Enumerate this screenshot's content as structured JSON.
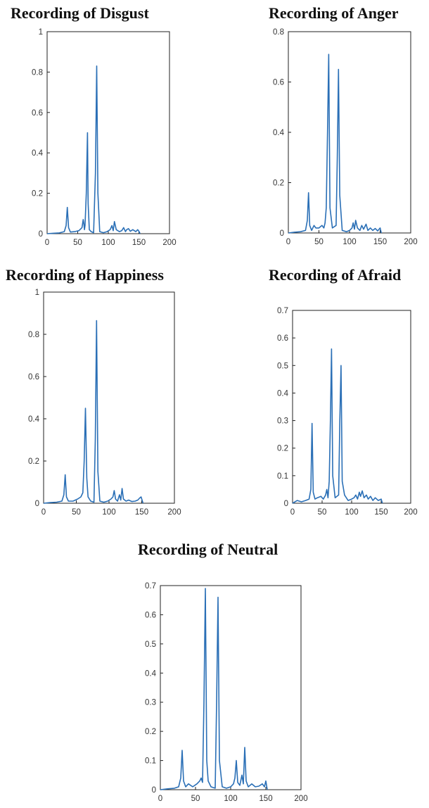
{
  "chart_data": [
    {
      "type": "line",
      "title": "Recording of Disgust",
      "xlim": [
        0,
        200
      ],
      "ylim": [
        0,
        1
      ],
      "xticks": [
        0,
        50,
        100,
        150,
        200
      ],
      "yticks": [
        0,
        0.2,
        0.4,
        0.6,
        0.8,
        1
      ],
      "ytick_labels": [
        "0",
        "0.2",
        "0.4",
        "0.6",
        "0.8",
        "1"
      ],
      "grid": false,
      "line_color": "#2a6fb6",
      "series": [
        {
          "x": [
            0,
            10,
            20,
            28,
            31,
            33,
            35,
            38,
            45,
            52,
            57,
            59,
            60,
            61,
            62,
            64,
            66,
            67,
            69,
            72,
            76,
            79,
            81,
            83,
            86,
            92,
            98,
            103,
            106,
            108,
            110,
            113,
            118,
            122,
            125,
            128,
            130,
            133,
            136,
            140,
            145,
            148,
            150,
            152
          ],
          "y": [
            0.0,
            0.002,
            0.004,
            0.01,
            0.04,
            0.13,
            0.03,
            0.008,
            0.01,
            0.015,
            0.03,
            0.07,
            0.05,
            0.02,
            0.04,
            0.2,
            0.5,
            0.15,
            0.02,
            0.01,
            0.005,
            0.3,
            0.83,
            0.2,
            0.01,
            0.005,
            0.01,
            0.02,
            0.04,
            0.015,
            0.06,
            0.02,
            0.01,
            0.015,
            0.03,
            0.01,
            0.02,
            0.025,
            0.012,
            0.02,
            0.01,
            0.02,
            0.012,
            0.0
          ]
        }
      ]
    },
    {
      "type": "line",
      "title": "Recording of Anger",
      "xlim": [
        0,
        200
      ],
      "ylim": [
        0,
        0.8
      ],
      "xticks": [
        0,
        50,
        100,
        150,
        200
      ],
      "yticks": [
        0,
        0.2,
        0.4,
        0.6,
        0.8
      ],
      "ytick_labels": [
        "0",
        "0.2",
        "0.4",
        "0.6",
        "0.8"
      ],
      "grid": false,
      "line_color": "#2a6fb6",
      "series": [
        {
          "x": [
            0,
            10,
            20,
            28,
            31,
            33,
            35,
            38,
            42,
            45,
            50,
            55,
            58,
            60,
            62,
            64,
            66,
            68,
            72,
            78,
            80,
            82,
            84,
            88,
            95,
            100,
            104,
            106,
            108,
            110,
            113,
            117,
            120,
            123,
            127,
            130,
            134,
            138,
            142,
            146,
            150,
            152
          ],
          "y": [
            0.0,
            0.003,
            0.005,
            0.01,
            0.05,
            0.16,
            0.03,
            0.01,
            0.03,
            0.02,
            0.02,
            0.03,
            0.02,
            0.04,
            0.1,
            0.4,
            0.71,
            0.1,
            0.02,
            0.03,
            0.3,
            0.65,
            0.15,
            0.01,
            0.005,
            0.01,
            0.02,
            0.04,
            0.015,
            0.05,
            0.02,
            0.01,
            0.03,
            0.015,
            0.035,
            0.01,
            0.02,
            0.01,
            0.018,
            0.008,
            0.02,
            0.0
          ]
        }
      ]
    },
    {
      "type": "line",
      "title": "Recording of Happiness",
      "xlim": [
        0,
        200
      ],
      "ylim": [
        0,
        1
      ],
      "xticks": [
        0,
        50,
        100,
        150,
        200
      ],
      "yticks": [
        0,
        0.2,
        0.4,
        0.6,
        0.8,
        1
      ],
      "ytick_labels": [
        "0",
        "0.2",
        "0.4",
        "0.6",
        "0.8",
        "1"
      ],
      "grid": false,
      "line_color": "#2a6fb6",
      "series": [
        {
          "x": [
            0,
            10,
            20,
            28,
            31,
            33,
            35,
            38,
            45,
            52,
            57,
            60,
            62,
            64,
            66,
            68,
            72,
            77,
            79,
            81,
            83,
            86,
            92,
            98,
            103,
            106,
            108,
            110,
            113,
            116,
            118,
            120,
            122,
            126,
            130,
            135,
            140,
            144,
            147,
            149,
            152
          ],
          "y": [
            0.0,
            0.003,
            0.005,
            0.01,
            0.04,
            0.135,
            0.03,
            0.01,
            0.01,
            0.02,
            0.03,
            0.05,
            0.2,
            0.45,
            0.12,
            0.03,
            0.01,
            0.005,
            0.3,
            0.865,
            0.15,
            0.01,
            0.005,
            0.01,
            0.02,
            0.03,
            0.06,
            0.02,
            0.01,
            0.04,
            0.015,
            0.07,
            0.02,
            0.01,
            0.015,
            0.008,
            0.01,
            0.015,
            0.025,
            0.03,
            0.0
          ]
        }
      ]
    },
    {
      "type": "line",
      "title": "Recording of Afraid",
      "xlim": [
        0,
        200
      ],
      "ylim": [
        0,
        0.7
      ],
      "xticks": [
        0,
        50,
        100,
        150,
        200
      ],
      "yticks": [
        0,
        0.1,
        0.2,
        0.3,
        0.4,
        0.5,
        0.6,
        0.7
      ],
      "ytick_labels": [
        "0",
        "0.1",
        "0.2",
        "0.3",
        "0.4",
        "0.5",
        "0.6",
        "0.7"
      ],
      "grid": false,
      "line_color": "#2a6fb6",
      "series": [
        {
          "x": [
            0,
            8,
            15,
            22,
            28,
            31,
            33,
            35,
            38,
            42,
            48,
            52,
            56,
            58,
            60,
            62,
            64,
            66,
            68,
            72,
            78,
            80,
            82,
            84,
            88,
            94,
            100,
            104,
            107,
            110,
            113,
            115,
            118,
            121,
            125,
            128,
            132,
            136,
            140,
            145,
            150,
            152
          ],
          "y": [
            0.0,
            0.01,
            0.005,
            0.01,
            0.015,
            0.05,
            0.29,
            0.04,
            0.015,
            0.02,
            0.025,
            0.015,
            0.03,
            0.05,
            0.02,
            0.08,
            0.3,
            0.56,
            0.1,
            0.02,
            0.03,
            0.3,
            0.5,
            0.08,
            0.03,
            0.01,
            0.015,
            0.02,
            0.03,
            0.015,
            0.04,
            0.025,
            0.045,
            0.02,
            0.03,
            0.015,
            0.025,
            0.01,
            0.02,
            0.01,
            0.015,
            0.0
          ]
        }
      ]
    },
    {
      "type": "line",
      "title": "Recording of Neutral",
      "xlim": [
        0,
        200
      ],
      "ylim": [
        0,
        0.7
      ],
      "xticks": [
        0,
        50,
        100,
        150,
        200
      ],
      "yticks": [
        0,
        0.1,
        0.2,
        0.3,
        0.4,
        0.5,
        0.6,
        0.7
      ],
      "ytick_labels": [
        "0",
        "0.1",
        "0.2",
        "0.3",
        "0.4",
        "0.5",
        "0.6",
        "0.7"
      ],
      "grid": false,
      "line_color": "#2a6fb6",
      "series": [
        {
          "x": [
            0,
            10,
            20,
            26,
            29,
            31,
            33,
            36,
            40,
            46,
            52,
            56,
            58,
            60,
            62,
            64,
            66,
            68,
            72,
            78,
            80,
            82,
            84,
            88,
            94,
            100,
            104,
            106,
            108,
            110,
            113,
            116,
            118,
            120,
            122,
            125,
            130,
            135,
            140,
            145,
            148,
            150,
            152
          ],
          "y": [
            0.0,
            0.003,
            0.005,
            0.01,
            0.04,
            0.135,
            0.03,
            0.01,
            0.02,
            0.01,
            0.02,
            0.03,
            0.04,
            0.025,
            0.3,
            0.69,
            0.1,
            0.03,
            0.01,
            0.005,
            0.3,
            0.66,
            0.1,
            0.01,
            0.005,
            0.01,
            0.02,
            0.04,
            0.1,
            0.025,
            0.015,
            0.05,
            0.02,
            0.145,
            0.03,
            0.01,
            0.02,
            0.01,
            0.012,
            0.02,
            0.01,
            0.03,
            0.0
          ]
        }
      ]
    }
  ]
}
